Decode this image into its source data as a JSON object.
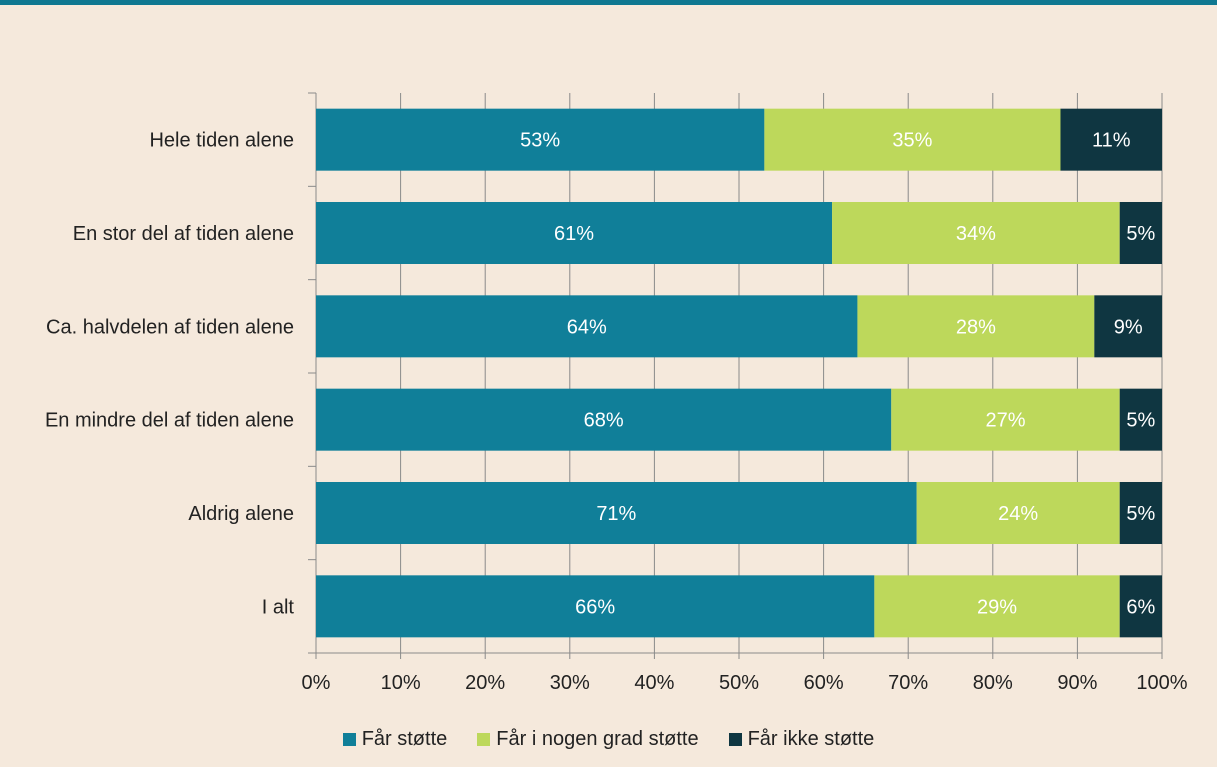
{
  "chart_data": {
    "type": "bar",
    "orientation": "horizontal",
    "stacked": true,
    "categories": [
      "Hele tiden alene",
      "En stor del af tiden alene",
      "Ca. halvdelen af tiden alene",
      "En mindre del af tiden alene",
      "Aldrig alene",
      "I alt"
    ],
    "series": [
      {
        "name": "Får støtte",
        "color": "#107f99",
        "values": [
          53,
          61,
          64,
          68,
          71,
          66
        ],
        "labels": [
          "53%",
          "61%",
          "64%",
          "68%",
          "71%",
          "66%"
        ]
      },
      {
        "name": "Får i nogen grad støtte",
        "color": "#bdd85b",
        "values": [
          35,
          34,
          28,
          27,
          24,
          29
        ],
        "labels": [
          "35%",
          "34%",
          "28%",
          "27%",
          "24%",
          "29%"
        ]
      },
      {
        "name": "Får ikke støtte",
        "color": "#0f3641",
        "values": [
          11,
          5,
          9,
          5,
          5,
          6
        ],
        "labels": [
          "11%",
          "5%",
          "9%",
          "5%",
          "5%",
          "6%"
        ]
      }
    ],
    "xlim": [
      0,
      100
    ],
    "xticks": [
      "0%",
      "10%",
      "20%",
      "30%",
      "40%",
      "50%",
      "60%",
      "70%",
      "80%",
      "90%",
      "100%"
    ],
    "grid": true,
    "legend_position": "bottom",
    "title": "",
    "xlabel": "",
    "ylabel": ""
  }
}
